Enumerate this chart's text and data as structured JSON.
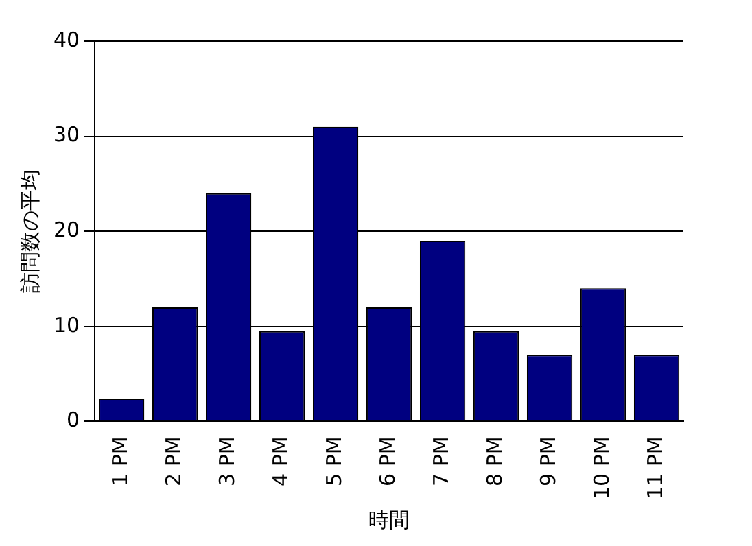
{
  "chart_data": {
    "type": "bar",
    "xlabel": "時間",
    "ylabel": "訪問数の平均",
    "categories": [
      "1 PM",
      "2 PM",
      "3 PM",
      "4 PM",
      "5 PM",
      "6 PM",
      "7 PM",
      "8 PM",
      "9 PM",
      "10 PM",
      "11 PM"
    ],
    "values": [
      2.4,
      12,
      24,
      9.5,
      31,
      12,
      19,
      9.5,
      7,
      14,
      7
    ],
    "color": "#000080",
    "ylim": [
      0,
      40
    ],
    "yticks": [
      0,
      10,
      20,
      30,
      40
    ],
    "grid": "y",
    "legend": false
  }
}
